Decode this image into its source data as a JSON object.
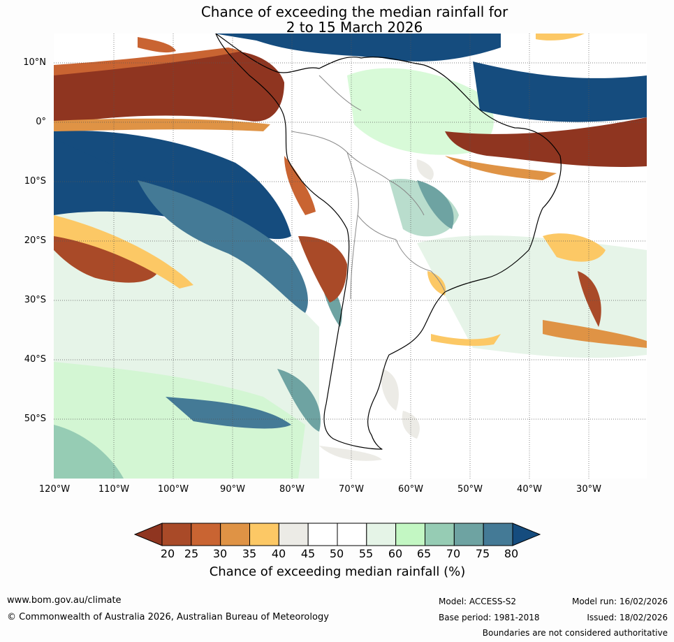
{
  "title": {
    "line1": "Chance of exceeding the median rainfall for",
    "line2": "2 to 15 March 2026"
  },
  "map": {
    "lat_labels": [
      "10°N",
      "0°",
      "10°S",
      "20°S",
      "30°S",
      "40°S",
      "50°S"
    ],
    "lon_labels": [
      "120°W",
      "110°W",
      "100°W",
      "90°W",
      "80°W",
      "70°W",
      "60°W",
      "50°W",
      "40°W",
      "30°W"
    ]
  },
  "legend": {
    "ticks": [
      "20",
      "25",
      "30",
      "35",
      "40",
      "45",
      "50",
      "55",
      "60",
      "65",
      "70",
      "75",
      "80"
    ],
    "colors": [
      "#8f3520",
      "#a94a28",
      "#c96432",
      "#df9345",
      "#fcc865",
      "#ecebe6",
      "#ffffff",
      "#ffffff",
      "#e5f4e7",
      "#c3f7c3",
      "#96ccb4",
      "#6ea3a2",
      "#447a96",
      "#154c7e"
    ],
    "label": "Chance of exceeding median rainfall (%)"
  },
  "footer": {
    "url": "www.bom.gov.au/climate",
    "copyright": "© Commonwealth of Australia 2026, Australian Bureau of Meteorology",
    "model": "Model: ACCESS-S2",
    "base_period": "Base period: 1981-2018",
    "model_run": "Model run: 16/02/2026",
    "issued": "Issued: 18/02/2026",
    "disclaimer": "Boundaries are not considered authoritative"
  }
}
